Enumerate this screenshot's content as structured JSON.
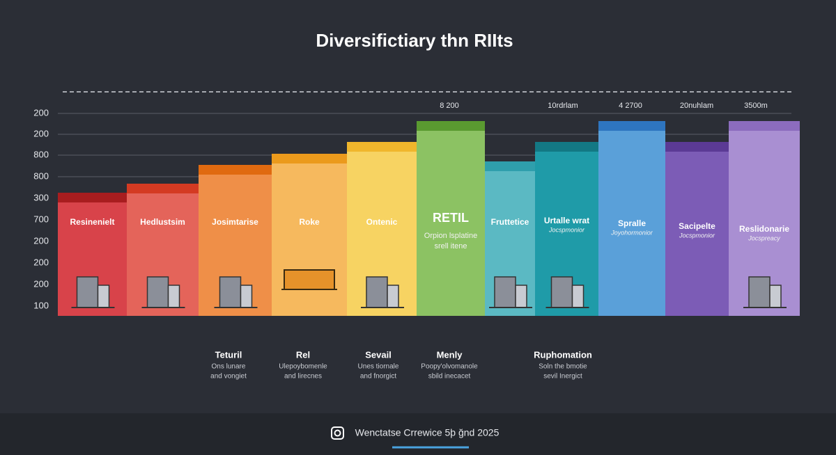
{
  "title": "Diversifictiary thn RIIts",
  "y_axis_labels": [
    "200",
    "200",
    "800",
    "800",
    "300",
    "700",
    "200",
    "200",
    "200",
    "100"
  ],
  "bars": [
    {
      "label": "Resinenielt"
    },
    {
      "label": "Hedlustsim"
    },
    {
      "label": "Josimtarise"
    },
    {
      "label": "Roke"
    },
    {
      "label": "Ontenic"
    },
    {
      "label": "RETIL",
      "sublabel": [
        "Orpion lsplatine",
        "srell itene"
      ]
    },
    {
      "label": "Fruttetice"
    },
    {
      "label": "Urtalle wrat",
      "sublabel": [
        "Jocspmonior"
      ]
    },
    {
      "label": "Spralle",
      "sublabel": [
        "Joyohormonior"
      ]
    },
    {
      "label": "Sacipelte",
      "sublabel": [
        "Jocspmonior"
      ]
    },
    {
      "label": "Reslidonarie",
      "sublabel": [
        "Jocspreacy"
      ]
    }
  ],
  "top_labels": [
    "8 200",
    "10rdrlam",
    "4 2700",
    "20nuhlam",
    "3500m"
  ],
  "captions": [
    {
      "title": "Teturil",
      "lines": [
        "Ons lunare",
        "and vongiet"
      ]
    },
    {
      "title": "Rel",
      "lines": [
        "Ulepoybomenle",
        "and lirecnes"
      ]
    },
    {
      "title": "Sevail",
      "lines": [
        "Unes tiornale",
        "and fnorgict"
      ]
    },
    {
      "title": "Menly",
      "lines": [
        "Poopy'olvomanole",
        "sbild inecacet"
      ]
    },
    {
      "title": "Ruphomation",
      "lines": [
        "Soln the bmotie",
        "sevil Inergict"
      ]
    }
  ],
  "footer": "Wenctatse Crrewice 5þ ğnd 2025"
}
